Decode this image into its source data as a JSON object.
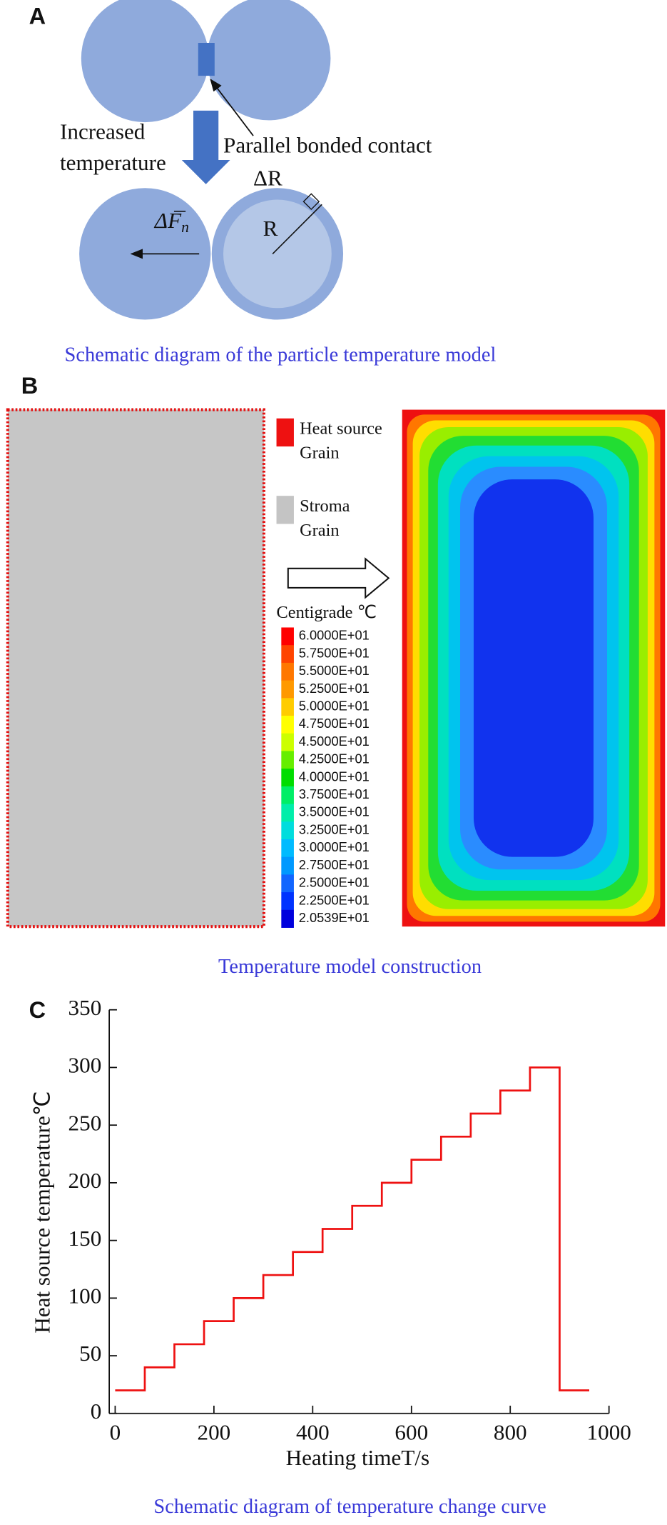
{
  "panel_a": {
    "label": "A",
    "increased": "Increased",
    "temperature": "temperature",
    "contact": "Parallel bonded contact",
    "delta_r": "ΔR",
    "r": "R",
    "force": "ΔF",
    "force_sub": "n",
    "caption": "Schematic diagram of the particle temperature model"
  },
  "panel_b": {
    "label": "B",
    "legend": [
      {
        "lines": [
          "Heat source",
          "Grain"
        ],
        "color": "#ee1111"
      },
      {
        "lines": [
          "Stroma",
          "Grain"
        ],
        "color": "#c4c4c4"
      }
    ],
    "colorbar_title": "Centigrade ℃",
    "colorbar": {
      "labels": [
        "6.0000E+01",
        "5.7500E+01",
        "5.5000E+01",
        "5.2500E+01",
        "5.0000E+01",
        "4.7500E+01",
        "4.5000E+01",
        "4.2500E+01",
        "4.0000E+01",
        "3.7500E+01",
        "3.5000E+01",
        "3.2500E+01",
        "3.0000E+01",
        "2.7500E+01",
        "2.5000E+01",
        "2.2500E+01",
        "2.0539E+01"
      ],
      "colors": [
        "#ff0000",
        "#ff4400",
        "#ff7700",
        "#ff9900",
        "#ffcc00",
        "#ffff00",
        "#ccff00",
        "#66ee00",
        "#00dd00",
        "#00ee66",
        "#00eeaa",
        "#00dddd",
        "#00bbff",
        "#0099ff",
        "#1166ff",
        "#0033ff",
        "#0000dd"
      ]
    },
    "caption": "Temperature model construction"
  },
  "chart_data": {
    "type": "line",
    "panel_label": "C",
    "x": [
      0,
      60,
      60,
      120,
      120,
      180,
      180,
      240,
      240,
      300,
      300,
      360,
      360,
      420,
      420,
      480,
      480,
      540,
      540,
      600,
      600,
      660,
      660,
      720,
      720,
      780,
      780,
      840,
      840,
      900,
      900,
      960
    ],
    "values": [
      20,
      20,
      40,
      40,
      60,
      60,
      80,
      80,
      100,
      100,
      120,
      120,
      140,
      140,
      160,
      160,
      180,
      180,
      200,
      200,
      220,
      220,
      240,
      240,
      260,
      260,
      280,
      280,
      300,
      300,
      20,
      20
    ],
    "color": "#ee1111",
    "xlim": [
      -12,
      1000
    ],
    "ylim": [
      0,
      350
    ],
    "xticks": [
      0,
      200,
      400,
      600,
      800,
      1000
    ],
    "yticks": [
      0,
      50,
      100,
      150,
      200,
      250,
      300,
      350
    ],
    "xlabel": "Heating timeT/s",
    "ylabel": "Heat source temperature℃",
    "caption": "Schematic diagram of temperature change curve"
  }
}
